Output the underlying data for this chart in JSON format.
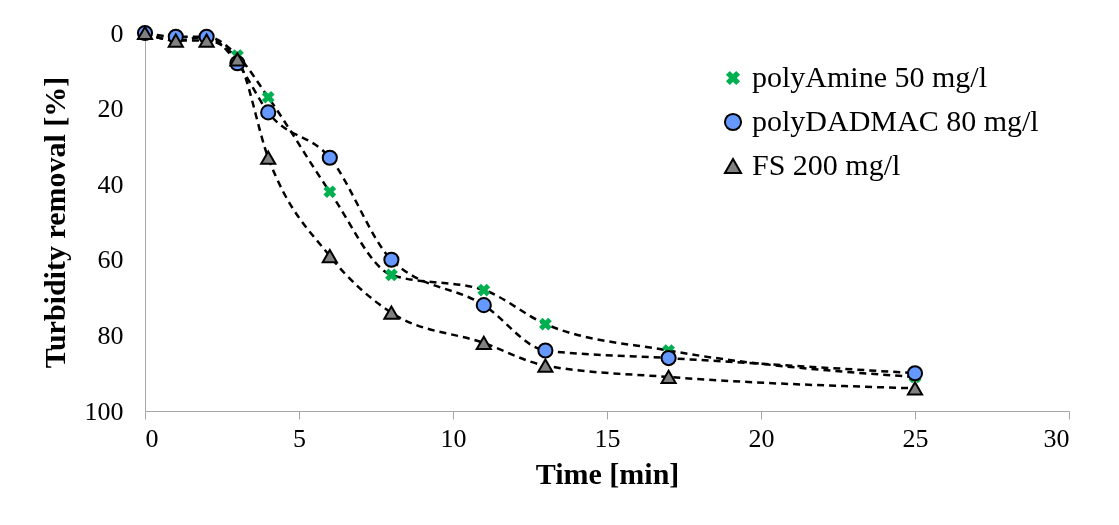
{
  "chart_data": {
    "type": "line",
    "xlabel": "Time [min]",
    "ylabel": "Turbidity removal [%]",
    "xlim": [
      0,
      30
    ],
    "xticks": [
      0,
      5,
      10,
      15,
      20,
      25,
      30
    ],
    "ylim": [
      100,
      0
    ],
    "yticks": [
      0,
      20,
      40,
      60,
      80,
      100
    ],
    "grid": false,
    "legend": "top right",
    "line_style": "dashed",
    "x": [
      0,
      1,
      2,
      3,
      4,
      6,
      8,
      11,
      13,
      17,
      25
    ],
    "series": [
      {
        "name": "polyAmine 50 mg/l",
        "color": "#00b050",
        "marker": "cross",
        "values": [
          0,
          2,
          1,
          6,
          17,
          42,
          64,
          68,
          77,
          84,
          91
        ]
      },
      {
        "name": "polyDADMAC 80 mg/l",
        "color": "#6699ff",
        "marker": "circle",
        "values": [
          0,
          1,
          1,
          8,
          21,
          33,
          60,
          72,
          84,
          86,
          90
        ]
      },
      {
        "name": "FS 200 mg/l",
        "color": "#808080",
        "marker": "triangle",
        "values": [
          0,
          2,
          2,
          7,
          33,
          59,
          74,
          82,
          88,
          91,
          94
        ]
      }
    ]
  }
}
